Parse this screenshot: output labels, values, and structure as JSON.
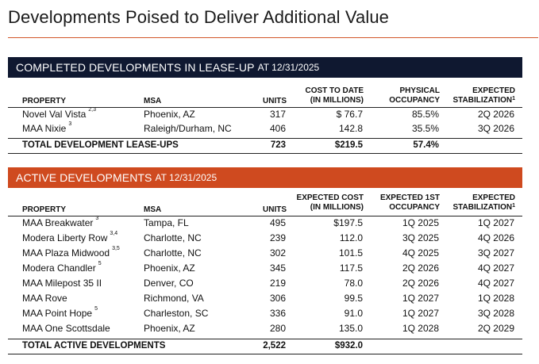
{
  "title": "Developments Poised to Deliver Additional Value",
  "completed": {
    "banner_main": "COMPLETED DEVELOPMENTS IN LEASE-UP",
    "banner_asof": "AT 12/31/2025",
    "headers": {
      "property": "PROPERTY",
      "msa": "MSA",
      "units": "UNITS",
      "cost_line1": "COST TO DATE",
      "cost_line2": "(IN MILLIONS)",
      "occ_line1": "PHYSICAL",
      "occ_line2": "OCCUPANCY",
      "stab_line1": "EXPECTED",
      "stab_line2": "STABILIZATION",
      "stab_sup": "1"
    },
    "rows": [
      {
        "property": "Novel Val Vista",
        "sup": "2,3",
        "msa": "Phoenix, AZ",
        "units": "317",
        "cost": "$ 76.7",
        "occ": "85.5%",
        "stab": "2Q 2026"
      },
      {
        "property": "MAA Nixie",
        "sup": "3",
        "msa": "Raleigh/Durham, NC",
        "units": "406",
        "cost": "142.8",
        "occ": "35.5%",
        "stab": "3Q 2026"
      }
    ],
    "total": {
      "label": "TOTAL DEVELOPMENT LEASE-UPS",
      "units": "723",
      "cost": "$219.5",
      "occ": "57.4%"
    }
  },
  "active": {
    "banner_main": "ACTIVE DEVELOPMENTS",
    "banner_asof": "AT 12/31/2025",
    "headers": {
      "property": "PROPERTY",
      "msa": "MSA",
      "units": "UNITS",
      "cost_line1": "EXPECTED COST",
      "cost_line2": "(IN MILLIONS)",
      "occ_line1": "EXPECTED 1ST",
      "occ_line2": "OCCUPANCY",
      "stab_line1": "EXPECTED",
      "stab_line2": "STABILIZATION",
      "stab_sup": "1"
    },
    "rows": [
      {
        "property": "MAA Breakwater",
        "sup": "3",
        "msa": "Tampa, FL",
        "units": "495",
        "cost": "$197.5",
        "occ": "1Q 2025",
        "stab": "1Q 2027"
      },
      {
        "property": "Modera Liberty Row",
        "sup": "3,4",
        "msa": "Charlotte, NC",
        "units": "239",
        "cost": "112.0",
        "occ": "3Q 2025",
        "stab": "4Q 2026"
      },
      {
        "property": "MAA Plaza Midwood",
        "sup": "3,5",
        "msa": "Charlotte, NC",
        "units": "302",
        "cost": "101.5",
        "occ": "4Q 2025",
        "stab": "3Q 2027"
      },
      {
        "property": "Modera Chandler",
        "sup": "5",
        "msa": "Phoenix, AZ",
        "units": "345",
        "cost": "117.5",
        "occ": "2Q 2026",
        "stab": "4Q 2027"
      },
      {
        "property": "MAA Milepost 35 II",
        "sup": "",
        "msa": "Denver, CO",
        "units": "219",
        "cost": "78.0",
        "occ": "2Q 2026",
        "stab": "4Q 2027"
      },
      {
        "property": "MAA Rove",
        "sup": "",
        "msa": "Richmond, VA",
        "units": "306",
        "cost": "99.5",
        "occ": "1Q 2027",
        "stab": "1Q 2028"
      },
      {
        "property": "MAA Point Hope",
        "sup": "5",
        "msa": "Charleston, SC",
        "units": "336",
        "cost": "91.0",
        "occ": "1Q 2027",
        "stab": "3Q 2028"
      },
      {
        "property": "MAA One Scottsdale",
        "sup": "",
        "msa": "Phoenix, AZ",
        "units": "280",
        "cost": "135.0",
        "occ": "1Q 2028",
        "stab": "2Q 2029"
      }
    ],
    "total": {
      "label": "TOTAL ACTIVE DEVELOPMENTS",
      "units": "2,522",
      "cost": "$932.0"
    }
  }
}
